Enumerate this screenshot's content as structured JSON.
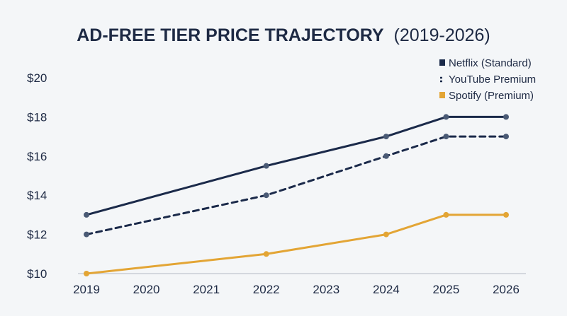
{
  "chart_data": {
    "type": "line",
    "title": "AD-FREE TIER PRICE TRAJECTORY",
    "subtitle": "(2019-2026)",
    "xlabel": "",
    "ylabel": "",
    "x": [
      2019,
      2020,
      2021,
      2022,
      2023,
      2024,
      2025,
      2026
    ],
    "x_tick_labels": [
      "2019",
      "2020",
      "2021",
      "2022",
      "2023",
      "2024",
      "2025",
      "2026"
    ],
    "ylim": [
      10,
      20
    ],
    "y_ticks": [
      10,
      12,
      14,
      16,
      18,
      20
    ],
    "y_tick_labels": [
      "$10",
      "$12",
      "$14",
      "$16",
      "$18",
      "$20"
    ],
    "grid": false,
    "legend_position": "top-right",
    "series": [
      {
        "name": "Netflix (Standard)",
        "color": "#1b2a4a",
        "style": "solid",
        "points": [
          [
            2019,
            13
          ],
          [
            2022,
            15.5
          ],
          [
            2024,
            17
          ],
          [
            2025,
            18
          ],
          [
            2026,
            18
          ]
        ]
      },
      {
        "name": "YouTube Premium",
        "color": "#1b2a4a",
        "style": "dashed",
        "points": [
          [
            2019,
            12
          ],
          [
            2022,
            14
          ],
          [
            2024,
            16
          ],
          [
            2025,
            17
          ],
          [
            2026,
            17
          ]
        ]
      },
      {
        "name": "Spotify (Premium)",
        "color": "#e3a535",
        "style": "solid",
        "points": [
          [
            2019,
            10
          ],
          [
            2022,
            11
          ],
          [
            2024,
            12
          ],
          [
            2025,
            13
          ],
          [
            2026,
            13
          ]
        ]
      }
    ],
    "marker_color": "#4a5a75",
    "axis_color": "#c9ced6"
  }
}
